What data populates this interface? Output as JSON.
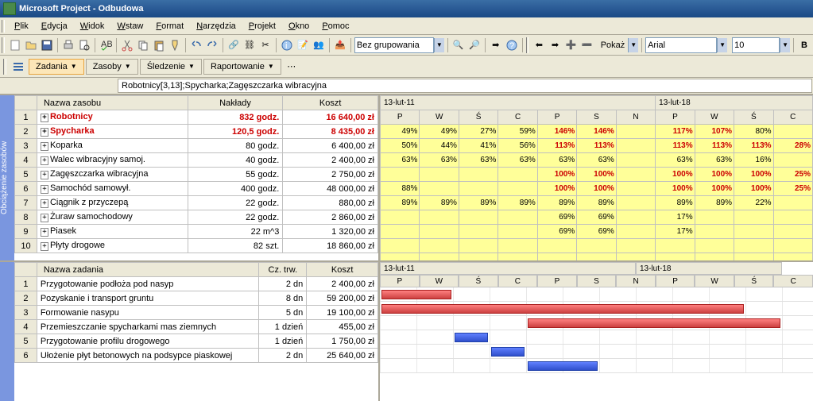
{
  "title": "Microsoft Project - Odbudowa",
  "menu": [
    "Plik",
    "Edycja",
    "Widok",
    "Wstaw",
    "Format",
    "Narzędzia",
    "Projekt",
    "Okno",
    "Pomoc"
  ],
  "grouping": "Bez grupowania",
  "show_label": "Pokaż",
  "font": "Arial",
  "fontsize": "10",
  "viewbar": {
    "tasks": "Zadania",
    "resources": "Zasoby",
    "tracking": "Śledzenie",
    "reporting": "Raportowanie"
  },
  "formula": "Robotnicy[3,13];Spycharka;Zagęszczarka wibracyjna",
  "sidebar_top": "Obciążenie zasobów",
  "sidebar_bottom": "",
  "res_cols": {
    "name": "Nazwa zasobu",
    "eff": "Nakłady",
    "cost": "Koszt"
  },
  "resources": [
    {
      "n": "Robotnicy",
      "eff": "832 godz.",
      "cost": "16 640,00 zł",
      "red": true
    },
    {
      "n": "Spycharka",
      "eff": "120,5 godz.",
      "cost": "8 435,00 zł",
      "red": true
    },
    {
      "n": "Koparka",
      "eff": "80 godz.",
      "cost": "6 400,00 zł"
    },
    {
      "n": "Walec wibracyjny samoj.",
      "eff": "40 godz.",
      "cost": "2 400,00 zł"
    },
    {
      "n": "Zagęszczarka wibracyjna",
      "eff": "55 godz.",
      "cost": "2 750,00 zł"
    },
    {
      "n": "Samochód samowył.",
      "eff": "400 godz.",
      "cost": "48 000,00 zł"
    },
    {
      "n": "Ciągnik z przyczepą",
      "eff": "22 godz.",
      "cost": "880,00 zł"
    },
    {
      "n": "Żuraw samochodowy",
      "eff": "22 godz.",
      "cost": "2 860,00 zł"
    },
    {
      "n": "Piasek",
      "eff": "22 m^3",
      "cost": "1 320,00 zł"
    },
    {
      "n": "Płyty drogowe",
      "eff": "82 szt.",
      "cost": "18 860,00 zł"
    }
  ],
  "timeline": {
    "weeks": [
      "13-lut-11",
      "13-lut-18"
    ],
    "days": [
      "P",
      "W",
      "Ś",
      "C",
      "P",
      "S",
      "N",
      "P",
      "W",
      "Ś",
      "C"
    ],
    "rows": [
      [
        {
          "v": "49%"
        },
        {
          "v": "49%"
        },
        {
          "v": "27%"
        },
        {
          "v": "59%"
        },
        {
          "v": "146%",
          "r": 1
        },
        {
          "v": "146%",
          "r": 1
        },
        {
          "v": ""
        },
        {
          "v": "117%",
          "r": 1
        },
        {
          "v": "107%",
          "r": 1
        },
        {
          "v": "80%"
        },
        {
          "v": ""
        }
      ],
      [
        {
          "v": "50%"
        },
        {
          "v": "44%"
        },
        {
          "v": "41%"
        },
        {
          "v": "56%"
        },
        {
          "v": "113%",
          "r": 1
        },
        {
          "v": "113%",
          "r": 1
        },
        {
          "v": ""
        },
        {
          "v": "113%",
          "r": 1
        },
        {
          "v": "113%",
          "r": 1
        },
        {
          "v": "113%",
          "r": 1
        },
        {
          "v": "28%",
          "r": 1
        }
      ],
      [
        {
          "v": "63%"
        },
        {
          "v": "63%"
        },
        {
          "v": "63%"
        },
        {
          "v": "63%"
        },
        {
          "v": "63%"
        },
        {
          "v": "63%"
        },
        {
          "v": ""
        },
        {
          "v": "63%"
        },
        {
          "v": "63%"
        },
        {
          "v": "16%"
        },
        {
          "v": ""
        }
      ],
      [
        {
          "v": ""
        },
        {
          "v": ""
        },
        {
          "v": ""
        },
        {
          "v": ""
        },
        {
          "v": "100%",
          "r": 1
        },
        {
          "v": "100%",
          "r": 1
        },
        {
          "v": ""
        },
        {
          "v": "100%",
          "r": 1
        },
        {
          "v": "100%",
          "r": 1
        },
        {
          "v": "100%",
          "r": 1
        },
        {
          "v": "25%",
          "r": 1
        }
      ],
      [
        {
          "v": "88%"
        },
        {
          "v": ""
        },
        {
          "v": ""
        },
        {
          "v": ""
        },
        {
          "v": "100%",
          "r": 1
        },
        {
          "v": "100%",
          "r": 1
        },
        {
          "v": ""
        },
        {
          "v": "100%",
          "r": 1
        },
        {
          "v": "100%",
          "r": 1
        },
        {
          "v": "100%",
          "r": 1
        },
        {
          "v": "25%",
          "r": 1
        }
      ],
      [
        {
          "v": "89%"
        },
        {
          "v": "89%"
        },
        {
          "v": "89%"
        },
        {
          "v": "89%"
        },
        {
          "v": "89%"
        },
        {
          "v": "89%"
        },
        {
          "v": ""
        },
        {
          "v": "89%"
        },
        {
          "v": "89%"
        },
        {
          "v": "22%"
        },
        {
          "v": ""
        }
      ],
      [
        {
          "v": ""
        },
        {
          "v": ""
        },
        {
          "v": ""
        },
        {
          "v": ""
        },
        {
          "v": "69%"
        },
        {
          "v": "69%"
        },
        {
          "v": ""
        },
        {
          "v": "17%"
        },
        {
          "v": ""
        },
        {
          "v": ""
        },
        {
          "v": ""
        }
      ],
      [
        {
          "v": ""
        },
        {
          "v": ""
        },
        {
          "v": ""
        },
        {
          "v": ""
        },
        {
          "v": "69%"
        },
        {
          "v": "69%"
        },
        {
          "v": ""
        },
        {
          "v": "17%"
        },
        {
          "v": ""
        },
        {
          "v": ""
        },
        {
          "v": ""
        }
      ],
      [
        {
          "v": ""
        },
        {
          "v": ""
        },
        {
          "v": ""
        },
        {
          "v": ""
        },
        {
          "v": ""
        },
        {
          "v": ""
        },
        {
          "v": ""
        },
        {
          "v": ""
        },
        {
          "v": ""
        },
        {
          "v": ""
        },
        {
          "v": ""
        }
      ],
      [
        {
          "v": ""
        },
        {
          "v": ""
        },
        {
          "v": ""
        },
        {
          "v": ""
        },
        {
          "v": ""
        },
        {
          "v": ""
        },
        {
          "v": ""
        },
        {
          "v": ""
        },
        {
          "v": ""
        },
        {
          "v": ""
        },
        {
          "v": ""
        }
      ]
    ]
  },
  "task_cols": {
    "name": "Nazwa zadania",
    "dur": "Cz. trw.",
    "cost": "Koszt"
  },
  "tasks": [
    {
      "n": "Przygotowanie podłoża pod nasyp",
      "d": "2 dn",
      "c": "2 400,00 zł"
    },
    {
      "n": "Pozyskanie i transport gruntu",
      "d": "8 dn",
      "c": "59 200,00 zł"
    },
    {
      "n": "Formowanie nasypu",
      "d": "5 dn",
      "c": "19 100,00 zł"
    },
    {
      "n": "Przemieszczanie spycharkami mas ziemnych",
      "d": "1 dzień",
      "c": "455,00 zł"
    },
    {
      "n": "Przygotowanie profilu drogowego",
      "d": "1 dzień",
      "c": "1 750,00 zł"
    },
    {
      "n": "Ułożenie płyt betonowych na podsypce piaskowej",
      "d": "2 dn",
      "c": "25 640,00 zł"
    }
  ],
  "gantt": {
    "days": [
      "P",
      "W",
      "Ś",
      "C",
      "P",
      "S",
      "N",
      "P",
      "W",
      "Ś",
      "C"
    ],
    "weeks": [
      "13-lut-11",
      "13-lut-18"
    ],
    "day_width": 46,
    "bars": [
      {
        "row": 0,
        "start": 0,
        "span": 2,
        "color": "red"
      },
      {
        "row": 1,
        "start": 0,
        "span": 10,
        "color": "red"
      },
      {
        "row": 2,
        "start": 4,
        "span": 7,
        "color": "red"
      },
      {
        "row": 3,
        "start": 2,
        "span": 1,
        "color": "blue"
      },
      {
        "row": 4,
        "start": 3,
        "span": 1,
        "color": "blue"
      },
      {
        "row": 5,
        "start": 4,
        "span": 2,
        "color": "blue"
      }
    ]
  }
}
